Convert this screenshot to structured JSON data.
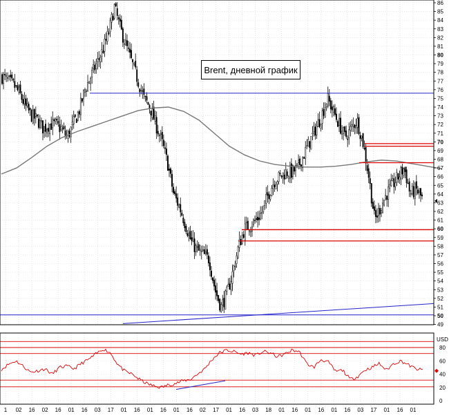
{
  "chart_data": [
    {
      "type": "candlestick",
      "title": "Brent, дневной график",
      "ylim": [
        49,
        86.5
      ],
      "y_ticks": [
        49,
        50,
        51,
        52,
        53,
        54,
        55,
        56,
        57,
        58,
        59,
        60,
        61,
        62,
        63,
        64,
        65,
        66,
        67,
        68,
        69,
        70,
        71,
        72,
        73,
        74,
        75,
        76,
        77,
        78,
        79,
        80,
        81,
        82,
        83,
        84,
        85,
        86
      ],
      "y_tick_labels": [
        "49",
        "50",
        "51",
        "52",
        "53",
        "54",
        "55",
        "56",
        "57",
        "58",
        "59",
        "60",
        "61",
        "62",
        "63",
        "64",
        "65",
        "66",
        "67",
        "68",
        "69",
        "70",
        "71",
        "72",
        "73",
        "74",
        "75",
        "76",
        "77",
        "78",
        "79",
        "80",
        "81",
        "82",
        "83",
        "84",
        "85",
        "86"
      ],
      "bold_ticks": [
        50,
        60,
        70,
        80
      ],
      "x_tick_labels": [
        "1",
        "02",
        "16",
        "02",
        "16",
        "01",
        "16",
        "03",
        "17",
        "01",
        "16",
        "01",
        "16",
        "01",
        "16",
        "02",
        "17",
        "01",
        "16",
        "03",
        "18",
        "01",
        "16",
        "01",
        "16",
        "01",
        "16",
        "03",
        "17",
        "01",
        "16",
        "01"
      ],
      "grid": true,
      "close_approx": [
        77.5,
        77,
        76.5,
        75.5,
        74,
        73,
        72.5,
        71.5,
        72,
        72,
        71.5,
        70.5,
        72,
        73.5,
        76,
        77.5,
        79,
        80.5,
        82.5,
        85.5,
        83,
        81,
        79,
        77,
        75,
        74,
        72,
        70,
        67.5,
        64,
        62.5,
        60.5,
        58.5,
        57.5,
        57,
        56.5,
        53,
        51,
        52.5,
        55,
        58,
        60,
        60.5,
        61,
        62,
        64,
        65.5,
        66,
        66.5,
        66.5,
        67,
        68.5,
        70,
        71.5,
        73,
        75,
        73.5,
        72,
        70.5,
        71.5,
        72.5,
        70,
        66,
        61,
        62.5,
        64,
        65,
        66,
        67,
        64,
        64.5,
        63.5
      ],
      "sma": [
        66.3,
        67,
        68.2,
        69.5,
        70.5,
        71.2,
        71.8,
        72.4,
        73,
        73.6,
        73.9,
        74,
        73.5,
        72.5,
        71,
        69.5,
        68.5,
        67.8,
        67.4,
        67.2,
        67.1,
        67.1,
        67.2,
        67.4,
        67.7,
        67.9,
        67.8,
        67.5,
        67.2,
        66.9
      ],
      "horizontal_levels": [
        {
          "value": 75.6,
          "color": "#2222cc"
        },
        {
          "value": 50.1,
          "color": "#2222cc"
        },
        {
          "value": 69.8,
          "color": "#dd0000"
        },
        {
          "value": 69.5,
          "color": "#dd0000"
        },
        {
          "value": 67.6,
          "color": "#dd0000"
        },
        {
          "value": 59.9,
          "color": "#dd0000"
        },
        {
          "value": 58.6,
          "color": "#dd0000"
        }
      ],
      "trendline": {
        "from": 49.1,
        "to": 51.4,
        "color": "#2222cc"
      },
      "last_price_marker": 63.2
    },
    {
      "type": "line",
      "indicator": "RSI",
      "ylim": [
        0,
        95
      ],
      "y_tick_labels": [
        "USD",
        "80",
        "60",
        "40",
        "20",
        "0"
      ],
      "y_ticks": [
        80,
        60,
        40,
        20,
        0
      ],
      "levels": [
        89,
        80,
        71,
        31,
        21
      ],
      "level_color": "#dd0000",
      "series_color": "#dd0000",
      "values": [
        47,
        55,
        60,
        52,
        43,
        45,
        48,
        40,
        50,
        52,
        48,
        56,
        62,
        70,
        78,
        72,
        55,
        44,
        40,
        32,
        26,
        22,
        20,
        24,
        26,
        30,
        32,
        40,
        48,
        62,
        72,
        76,
        74,
        70,
        72,
        68,
        74,
        72,
        66,
        70,
        76,
        74,
        56,
        50,
        62,
        58,
        44,
        46,
        32,
        36,
        46,
        50,
        56,
        46,
        56,
        60,
        54,
        48,
        46
      ],
      "trendline": {
        "from": 17,
        "to": 30,
        "color": "#2222cc"
      },
      "last_value_marker": 45
    }
  ]
}
